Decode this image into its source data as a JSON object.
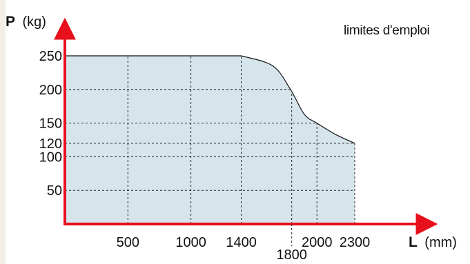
{
  "colors": {
    "axis": "#e8101c",
    "area_fill": "#d6e4ec",
    "grid": "#222222",
    "curve": "#111111",
    "frame": "#f3eee6"
  },
  "chart_data": {
    "type": "area",
    "title": "limites d'emploi",
    "ylabel": {
      "symbol": "P",
      "unit": "(kg)"
    },
    "xlabel": {
      "symbol": "L",
      "unit": "(mm)"
    },
    "x_ticks": [
      {
        "value": 500,
        "label": "500"
      },
      {
        "value": 1000,
        "label": "1000"
      },
      {
        "value": 1400,
        "label": "1400"
      },
      {
        "value": 1800,
        "label": "1800"
      },
      {
        "value": 2000,
        "label": "2000"
      },
      {
        "value": 2300,
        "label": "2300"
      }
    ],
    "y_ticks": [
      {
        "value": 50,
        "label": "50"
      },
      {
        "value": 100,
        "label": "100"
      },
      {
        "value": 120,
        "label": "120"
      },
      {
        "value": 150,
        "label": "150"
      },
      {
        "value": 200,
        "label": "200"
      },
      {
        "value": 250,
        "label": "250"
      }
    ],
    "series": [
      {
        "x": [
          0,
          1400,
          1650,
          1790,
          1900,
          2000,
          2150,
          2300
        ],
        "y": [
          250,
          250,
          235,
          200,
          163,
          150,
          133,
          120
        ]
      }
    ],
    "xlim": [
      0,
      2300
    ],
    "ylim": [
      0,
      250
    ],
    "grid": "dotted"
  }
}
